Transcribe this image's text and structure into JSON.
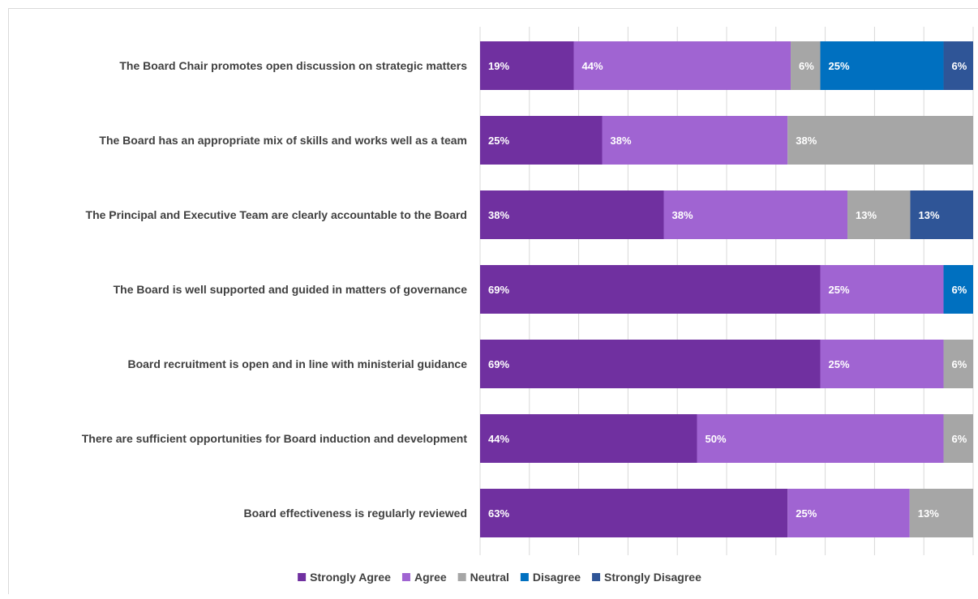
{
  "chart_data": {
    "type": "bar",
    "orientation": "horizontal",
    "stacked": true,
    "percent_stacked": true,
    "categories": [
      "The Board Chair promotes open discussion on strategic matters",
      "The Board has an appropriate mix of skills and works well as a team",
      "The Principal and Executive Team are clearly accountable to the Board",
      "The Board is well supported and guided in matters of governance",
      "Board recruitment is open and in line with ministerial guidance",
      "There are sufficient opportunities for Board induction and development",
      "Board effectiveness is regularly reviewed"
    ],
    "series": [
      {
        "name": "Strongly Agree",
        "color": "#7030a0",
        "values": [
          19,
          25,
          38,
          69,
          69,
          44,
          63
        ],
        "labels": [
          "19%",
          "25%",
          "38%",
          "69%",
          "69%",
          "44%",
          "63%"
        ]
      },
      {
        "name": "Agree",
        "color": "#a064d2",
        "values": [
          44,
          38,
          38,
          25,
          25,
          50,
          25
        ],
        "labels": [
          "44%",
          "38%",
          "38%",
          "25%",
          "25%",
          "50%",
          "25%"
        ]
      },
      {
        "name": "Neutral",
        "color": "#a6a6a6",
        "values": [
          6,
          38,
          13,
          0,
          6,
          6,
          13
        ],
        "labels": [
          "6%",
          "38%",
          "13%",
          "",
          "6%",
          "6%",
          "13%"
        ]
      },
      {
        "name": "Disagree",
        "color": "#0070c0",
        "values": [
          25,
          0,
          0,
          6,
          0,
          0,
          0
        ],
        "labels": [
          "25%",
          "",
          "",
          "6%",
          "",
          "",
          ""
        ]
      },
      {
        "name": "Strongly Disagree",
        "color": "#2f5597",
        "values": [
          6,
          0,
          13,
          0,
          0,
          0,
          0
        ],
        "labels": [
          "6%",
          "",
          "13%",
          "",
          "",
          "",
          ""
        ]
      }
    ],
    "xlim": [
      0,
      100
    ],
    "grid": true,
    "legend": "bottom"
  }
}
